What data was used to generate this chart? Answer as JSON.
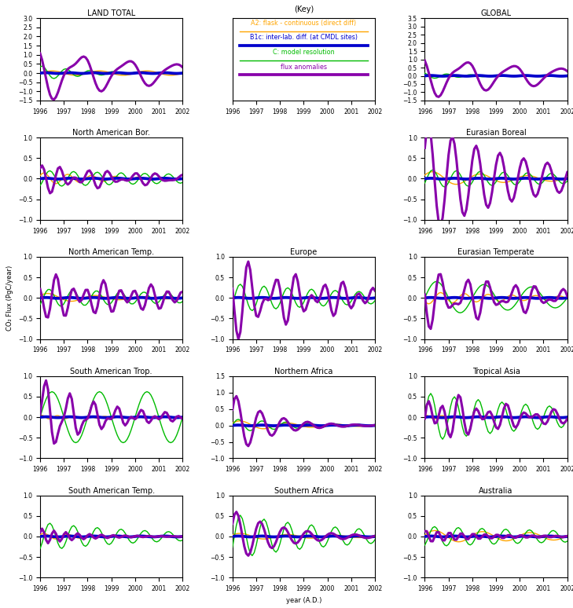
{
  "colors": {
    "orange": "#FFA500",
    "blue": "#0000CC",
    "green": "#00BB00",
    "purple": "#8800AA"
  },
  "legend_labels": [
    "A2: flask - continuous (direct diff)",
    "B1c: inter-lab. diff. (at CMDL sites)",
    "C: model resolution",
    "flux anomalies"
  ],
  "xlabel": "year (A.D.)",
  "ylabel": "CO₂ Flux (PgC/year)",
  "panels": [
    {
      "title": "LAND TOTAL",
      "row": 0,
      "col": 0,
      "ylim": [
        -1.5,
        3.0
      ],
      "ytick_step": 0.5
    },
    {
      "title": "(Key)",
      "row": 0,
      "col": 1,
      "ylim": [
        -1.5,
        3.0
      ],
      "ytick_step": 0.5
    },
    {
      "title": "GLOBAL",
      "row": 0,
      "col": 2,
      "ylim": [
        -1.5,
        3.5
      ],
      "ytick_step": 0.5
    },
    {
      "title": "North American Bor.",
      "row": 1,
      "col": 0,
      "ylim": [
        -1.0,
        1.0
      ],
      "ytick_step": 0.5
    },
    {
      "title": "Eurasian Boreal",
      "row": 1,
      "col": 2,
      "ylim": [
        -1.0,
        1.0
      ],
      "ytick_step": 0.5
    },
    {
      "title": "North American Temp.",
      "row": 2,
      "col": 0,
      "ylim": [
        -1.0,
        1.0
      ],
      "ytick_step": 0.5
    },
    {
      "title": "Europe",
      "row": 2,
      "col": 1,
      "ylim": [
        -1.0,
        1.0
      ],
      "ytick_step": 0.5
    },
    {
      "title": "Eurasian Temperate",
      "row": 2,
      "col": 2,
      "ylim": [
        -1.0,
        1.0
      ],
      "ytick_step": 0.5
    },
    {
      "title": "South American Trop.",
      "row": 3,
      "col": 0,
      "ylim": [
        -1.0,
        1.0
      ],
      "ytick_step": 0.5
    },
    {
      "title": "Northern Africa",
      "row": 3,
      "col": 1,
      "ylim": [
        -1.0,
        1.5
      ],
      "ytick_step": 0.5
    },
    {
      "title": "Tropical Asia",
      "row": 3,
      "col": 2,
      "ylim": [
        -1.0,
        1.0
      ],
      "ytick_step": 0.5
    },
    {
      "title": "South American Temp.",
      "row": 4,
      "col": 0,
      "ylim": [
        -1.0,
        1.0
      ],
      "ytick_step": 0.5
    },
    {
      "title": "Southern Africa",
      "row": 4,
      "col": 1,
      "ylim": [
        -1.0,
        1.0
      ],
      "ytick_step": 0.5
    },
    {
      "title": "Australia",
      "row": 4,
      "col": 2,
      "ylim": [
        -1.0,
        1.0
      ],
      "ytick_step": 0.5
    }
  ]
}
